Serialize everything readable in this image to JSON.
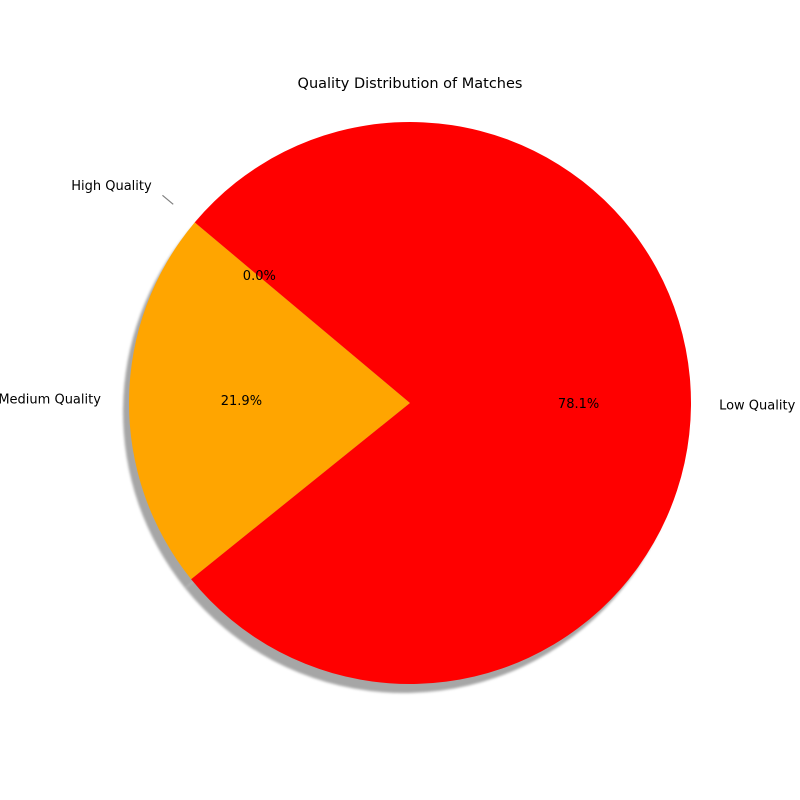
{
  "chart_data": {
    "type": "pie",
    "title": "Quality Distribution of Matches",
    "slices": [
      {
        "label": "High Quality",
        "value": 0.0,
        "pct_label": "0.0%",
        "color": "#00a000"
      },
      {
        "label": "Medium Quality",
        "value": 21.9,
        "pct_label": "21.9%",
        "color": "#ffa500"
      },
      {
        "label": "Low Quality",
        "value": 78.1,
        "pct_label": "78.1%",
        "color": "#ff0000"
      }
    ],
    "start_angle_deg": 140,
    "shadow": true,
    "explode": [
      "High Quality"
    ]
  }
}
